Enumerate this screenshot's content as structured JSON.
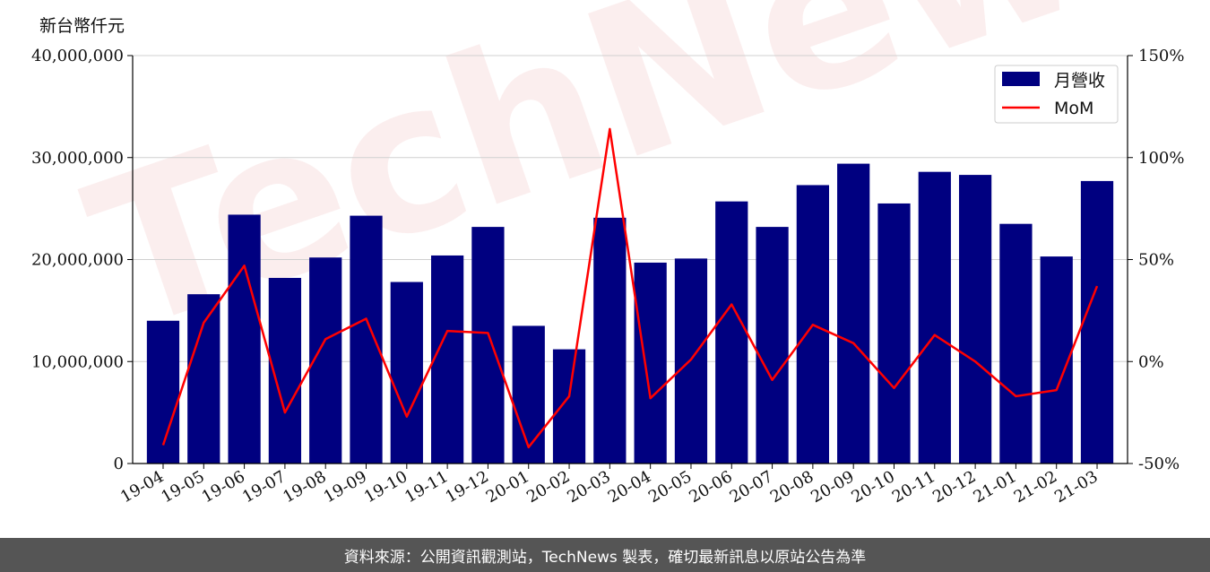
{
  "chart_data": {
    "type": "bar",
    "ylabel": "新台幣仟元",
    "categories": [
      "19-04",
      "19-05",
      "19-06",
      "19-07",
      "19-08",
      "19-09",
      "19-10",
      "19-11",
      "19-12",
      "20-01",
      "20-02",
      "20-03",
      "20-04",
      "20-05",
      "20-06",
      "20-07",
      "20-08",
      "20-09",
      "20-10",
      "20-11",
      "20-12",
      "21-01",
      "21-02",
      "21-03"
    ],
    "series": [
      {
        "name": "月營收",
        "type": "bar",
        "axis": "left",
        "color": "#000080",
        "values": [
          14000000,
          16600000,
          24400000,
          18200000,
          20200000,
          24300000,
          17800000,
          20400000,
          23200000,
          13500000,
          11200000,
          24100000,
          19700000,
          20100000,
          25700000,
          23200000,
          27300000,
          29400000,
          25500000,
          28600000,
          28300000,
          23500000,
          20300000,
          27700000
        ]
      },
      {
        "name": "MoM",
        "type": "line",
        "axis": "right",
        "color": "#ff0000",
        "values": [
          -41,
          19,
          47,
          -25,
          11,
          21,
          -27,
          15,
          14,
          -42,
          -17,
          114,
          -18,
          1,
          28,
          -9,
          18,
          9,
          -13,
          13,
          0,
          -17,
          -14,
          37
        ]
      }
    ],
    "ylim": [
      0,
      40000000
    ],
    "yticks": [
      0,
      10000000,
      20000000,
      30000000,
      40000000
    ],
    "ytick_labels": [
      "0",
      "10,000,000",
      "20,000,000",
      "30,000,000",
      "40,000,000"
    ],
    "y2lim": [
      -50,
      150
    ],
    "y2ticks": [
      -50,
      0,
      50,
      100,
      150
    ],
    "y2tick_labels": [
      "-50%",
      "0%",
      "50%",
      "100%",
      "150%"
    ],
    "grid": "horizontal",
    "legend_position": "top-right"
  },
  "watermark": "TechNews",
  "footer": "資料來源：公開資訊觀測站，TechNews 製表，確切最新訊息以原站公告為準"
}
